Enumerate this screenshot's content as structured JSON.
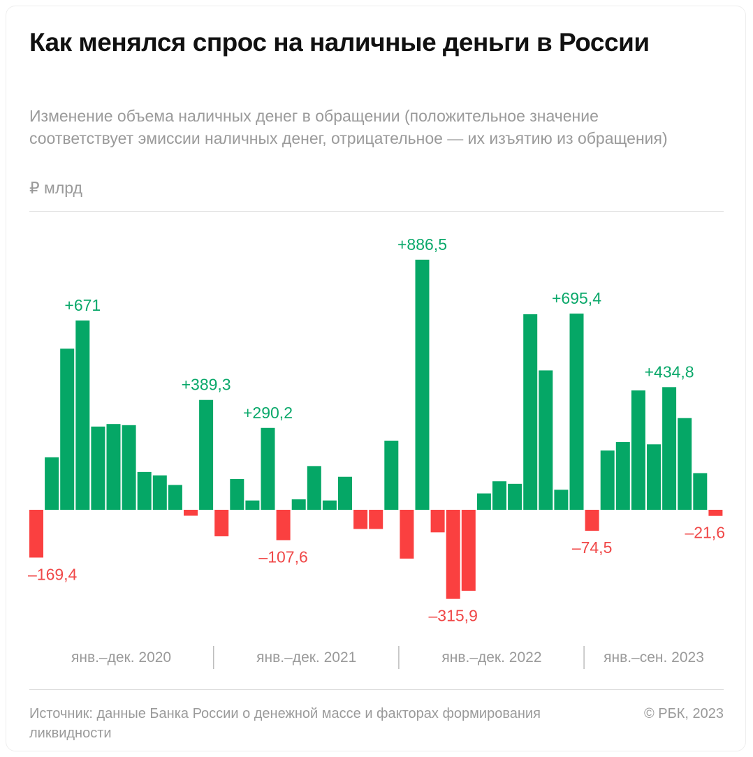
{
  "title": "Как менялся спрос на наличные деньги в России",
  "subtitle": "Изменение объема наличных денег в обращении (положительное значение соответствует эмиссии наличных денег, отрицательное — их изъятию из обращения)",
  "unit": "₽ млрд",
  "source": "Источник: данные Банка России о денежной массе и факторах формирования ликвидности",
  "copyright": "© РБК, 2023",
  "colors": {
    "positive": "#05a766",
    "negative": "#fa4040",
    "label_positive": "#0aa86a",
    "label_negative": "#f04848"
  },
  "chart_data": {
    "type": "bar",
    "title": "Как менялся спрос на наличные деньги в России",
    "ylabel": "₽ млрд",
    "grid": false,
    "legend": "none",
    "groups": [
      "янв.–дек. 2020",
      "янв.–дек. 2021",
      "янв.–дек. 2022",
      "янв.–сен. 2023"
    ],
    "group_sizes": [
      12,
      12,
      12,
      9
    ],
    "values": [
      -169.4,
      186,
      571,
      671,
      295,
      304,
      300,
      134,
      122,
      88,
      -21,
      389.3,
      -94,
      109,
      33,
      290.2,
      -107.6,
      37,
      155,
      33,
      117,
      -68,
      -68,
      245,
      -173,
      886.5,
      -80,
      -315.9,
      -287,
      58,
      101,
      92,
      693,
      494,
      71,
      695.4,
      -74.5,
      210,
      240,
      423,
      232,
      434.8,
      325,
      130,
      -21.6
    ],
    "data_labels": [
      "–169,4",
      null,
      null,
      "+671",
      null,
      null,
      null,
      null,
      null,
      null,
      null,
      "+389,3",
      null,
      null,
      null,
      "+290,2",
      "–107,6",
      null,
      null,
      null,
      null,
      null,
      null,
      null,
      null,
      "+886,5",
      null,
      "–315,9",
      null,
      null,
      null,
      null,
      null,
      null,
      null,
      "+695,4",
      "–74,5",
      null,
      null,
      null,
      null,
      "+434,8",
      null,
      null,
      "–21,6"
    ],
    "ylim": [
      -330,
      900
    ]
  }
}
